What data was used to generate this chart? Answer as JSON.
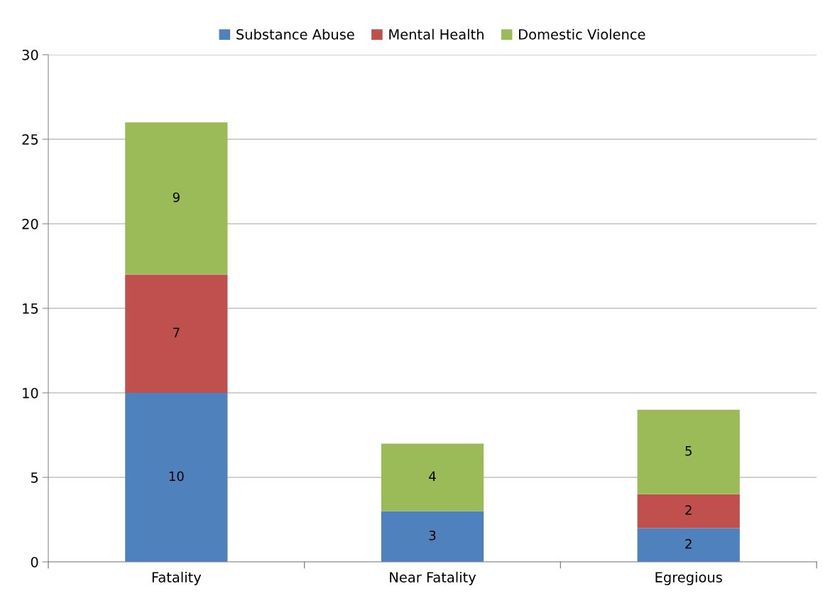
{
  "chart_data": {
    "type": "bar",
    "stacked": true,
    "categories": [
      "Fatality",
      "Near Fatality",
      "Egregious"
    ],
    "series": [
      {
        "name": "Substance Abuse",
        "color": "#4f81bd",
        "values": [
          10,
          3,
          2
        ]
      },
      {
        "name": "Mental Health",
        "color": "#c0504d",
        "values": [
          7,
          null,
          2
        ]
      },
      {
        "name": "Domestic Violence",
        "color": "#9bbb59",
        "values": [
          9,
          4,
          5
        ]
      }
    ],
    "ylim": [
      0,
      30
    ],
    "yticks": [
      0,
      5,
      10,
      15,
      20,
      25,
      30
    ],
    "grid": "y",
    "legend": "top",
    "data_labels": true
  }
}
